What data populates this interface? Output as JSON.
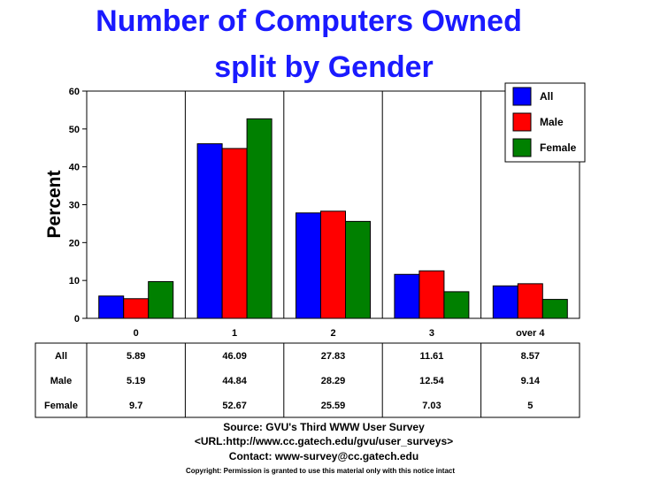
{
  "chart_data": {
    "type": "bar",
    "title": [
      "Number of Computers Owned",
      "split by Gender"
    ],
    "ylabel": "Percent",
    "xlabel": "",
    "ylim": [
      0,
      60
    ],
    "yticks": [
      "0",
      "10",
      "20",
      "30",
      "40",
      "50",
      "60"
    ],
    "categories": [
      "0",
      "1",
      "2",
      "3",
      "over 4"
    ],
    "series": [
      {
        "name": "All",
        "color": "#0000ff",
        "values": [
          5.89,
          46.09,
          27.83,
          11.61,
          8.57
        ],
        "labels": [
          "5.89",
          "46.09",
          "27.83",
          "11.61",
          "8.57"
        ]
      },
      {
        "name": "Male",
        "color": "#ff0000",
        "values": [
          5.19,
          44.84,
          28.29,
          12.54,
          9.14
        ],
        "labels": [
          "5.19",
          "44.84",
          "28.29",
          "12.54",
          "9.14"
        ]
      },
      {
        "name": "Female",
        "color": "#008000",
        "values": [
          9.7,
          52.67,
          25.59,
          7.03,
          5
        ],
        "labels": [
          "9.7",
          "52.67",
          "25.59",
          "7.03",
          "5"
        ]
      }
    ],
    "grid": "vertical",
    "legend": "top-right"
  },
  "footer": {
    "source": "Source: GVU's Third WWW User Survey",
    "url": "<URL:http://www.cc.gatech.edu/gvu/user_surveys>",
    "contact": "Contact: www-survey@cc.gatech.edu",
    "copyright": "Copyright: Permission is granted to use this material only with this notice intact"
  }
}
